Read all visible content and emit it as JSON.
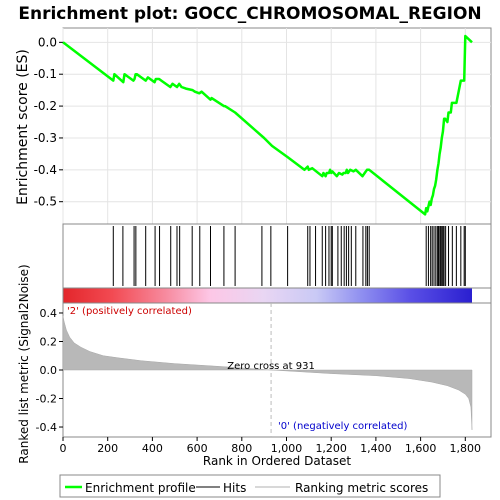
{
  "chart_data": {
    "type": "line",
    "title": "Enrichment plot: GOCC_CHROMOSOMAL_REGION",
    "xlabel": "Rank in Ordered Dataset",
    "xlim": [
      0,
      1915
    ],
    "x_ticks": [
      0,
      200,
      400,
      600,
      800,
      1000,
      1200,
      1400,
      1600,
      1800
    ],
    "x_tick_labels": [
      "0",
      "200",
      "400",
      "600",
      "800",
      "1,000",
      "1,200",
      "1,400",
      "1,600",
      "1,800"
    ],
    "enrichment": {
      "ylabel": "Enrichment score (ES)",
      "ylim": [
        -0.57,
        0.045
      ],
      "y_ticks": [
        0.0,
        -0.1,
        -0.2,
        -0.3,
        -0.4,
        -0.5
      ],
      "y_tick_labels": [
        "0.0",
        "-0.1",
        "-0.2",
        "-0.3",
        "-0.4",
        "-0.5"
      ],
      "grid": true,
      "color": "#00ff00",
      "x": [
        0,
        225,
        230,
        270,
        275,
        315,
        320,
        325,
        330,
        370,
        380,
        410,
        415,
        430,
        440,
        480,
        490,
        510,
        520,
        530,
        550,
        580,
        590,
        610,
        620,
        660,
        665,
        720,
        725,
        770,
        900,
        935,
        1005,
        1080,
        1095,
        1100,
        1115,
        1160,
        1165,
        1175,
        1180,
        1190,
        1195,
        1200,
        1205,
        1225,
        1235,
        1250,
        1255,
        1265,
        1270,
        1275,
        1280,
        1285,
        1300,
        1310,
        1340,
        1350,
        1360,
        1370,
        1620,
        1625,
        1630,
        1640,
        1645,
        1650,
        1655,
        1660,
        1665,
        1670,
        1675,
        1680,
        1685,
        1690,
        1695,
        1700,
        1705,
        1710,
        1720,
        1725,
        1735,
        1740,
        1755,
        1760,
        1780,
        1785,
        1795,
        1800,
        1830
      ],
      "y": [
        0.0,
        -0.12,
        -0.1,
        -0.125,
        -0.1,
        -0.12,
        -0.115,
        -0.1,
        -0.1,
        -0.12,
        -0.11,
        -0.125,
        -0.115,
        -0.115,
        -0.12,
        -0.14,
        -0.13,
        -0.14,
        -0.13,
        -0.14,
        -0.145,
        -0.15,
        -0.155,
        -0.16,
        -0.155,
        -0.18,
        -0.175,
        -0.2,
        -0.2,
        -0.22,
        -0.3,
        -0.325,
        -0.36,
        -0.4,
        -0.39,
        -0.4,
        -0.395,
        -0.42,
        -0.41,
        -0.42,
        -0.41,
        -0.41,
        -0.4,
        -0.41,
        -0.405,
        -0.42,
        -0.41,
        -0.415,
        -0.41,
        -0.41,
        -0.4,
        -0.41,
        -0.405,
        -0.4,
        -0.405,
        -0.4,
        -0.42,
        -0.41,
        -0.4,
        -0.4,
        -0.54,
        -0.52,
        -0.53,
        -0.5,
        -0.51,
        -0.49,
        -0.48,
        -0.46,
        -0.45,
        -0.43,
        -0.4,
        -0.38,
        -0.35,
        -0.33,
        -0.3,
        -0.28,
        -0.24,
        -0.24,
        -0.25,
        -0.22,
        -0.22,
        -0.19,
        -0.19,
        -0.19,
        -0.12,
        -0.12,
        -0.12,
        0.02,
        0.0
      ]
    },
    "hits": [
      225,
      268,
      318,
      326,
      370,
      412,
      432,
      482,
      510,
      522,
      578,
      612,
      660,
      720,
      770,
      890,
      930,
      1005,
      1095,
      1105,
      1130,
      1160,
      1175,
      1190,
      1200,
      1205,
      1230,
      1245,
      1258,
      1268,
      1278,
      1290,
      1310,
      1342,
      1355,
      1362,
      1370,
      1625,
      1635,
      1645,
      1652,
      1660,
      1668,
      1675,
      1680,
      1686,
      1690,
      1695,
      1700,
      1705,
      1712,
      1725,
      1742,
      1760,
      1780,
      1795,
      1800
    ],
    "ranking_metric": {
      "ylabel": "Ranked list metric (Signal2Noise)",
      "ylim": [
        -0.47,
        0.47
      ],
      "y_ticks": [
        0.4,
        0.2,
        0.0,
        -0.2,
        -0.4
      ],
      "y_tick_labels": [
        "0.4",
        "0.2",
        "0.0",
        "-0.2",
        "-0.4"
      ],
      "x": [
        0,
        5,
        15,
        30,
        50,
        80,
        120,
        180,
        250,
        350,
        500,
        700,
        931,
        1200,
        1400,
        1550,
        1650,
        1720,
        1770,
        1800,
        1815,
        1825,
        1830
      ],
      "y": [
        0.38,
        0.34,
        0.28,
        0.23,
        0.19,
        0.16,
        0.13,
        0.1,
        0.085,
        0.065,
        0.045,
        0.025,
        0.0,
        -0.025,
        -0.04,
        -0.06,
        -0.085,
        -0.11,
        -0.14,
        -0.17,
        -0.2,
        -0.26,
        -0.42
      ],
      "zero_cross_label": "Zero cross at 931",
      "zero_cross_at": 931,
      "positive_label": "'2' (positively correlated)",
      "negative_label": "'0' (negatively correlated)"
    },
    "legend": {
      "placement": "bottom",
      "entries": [
        {
          "label": "Enrichment profile",
          "color": "#00ff00"
        },
        {
          "label": "Hits",
          "color": "#000000"
        },
        {
          "label": "Ranking metric scores",
          "color": "#b0b0b0"
        }
      ]
    }
  }
}
